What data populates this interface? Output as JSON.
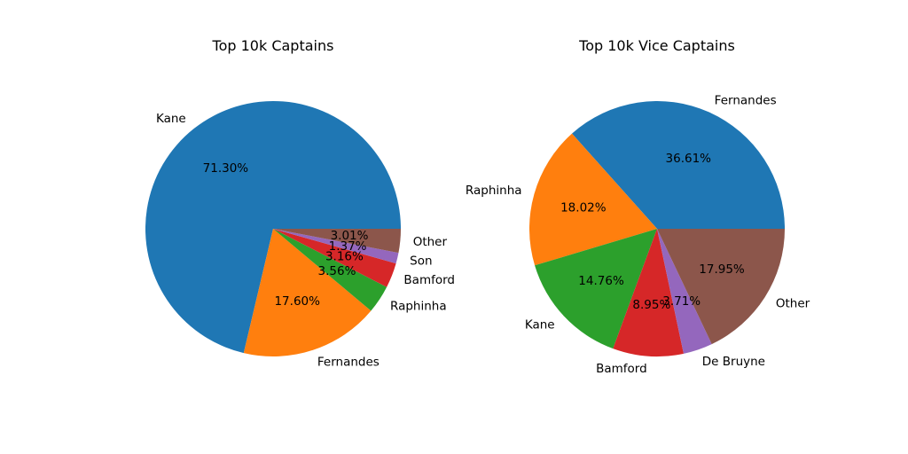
{
  "chart_data": [
    {
      "type": "pie",
      "title": "Top 10k Captains",
      "slices": [
        {
          "label": "Kane",
          "value": 71.3,
          "pct_label": "71.30%",
          "color": "#1f77b4"
        },
        {
          "label": "Fernandes",
          "value": 17.6,
          "pct_label": "17.60%",
          "color": "#ff7f0e"
        },
        {
          "label": "Raphinha",
          "value": 3.56,
          "pct_label": "3.56%",
          "color": "#2ca02c"
        },
        {
          "label": "Bamford",
          "value": 3.16,
          "pct_label": "3.16%",
          "color": "#d62728"
        },
        {
          "label": "Son",
          "value": 1.37,
          "pct_label": "1.37%",
          "color": "#9467bd"
        },
        {
          "label": "Other",
          "value": 3.01,
          "pct_label": "3.01%",
          "color": "#8c564b"
        }
      ]
    },
    {
      "type": "pie",
      "title": "Top 10k Vice Captains",
      "slices": [
        {
          "label": "Fernandes",
          "value": 36.61,
          "pct_label": "36.61%",
          "color": "#1f77b4"
        },
        {
          "label": "Raphinha",
          "value": 18.02,
          "pct_label": "18.02%",
          "color": "#ff7f0e"
        },
        {
          "label": "Kane",
          "value": 14.76,
          "pct_label": "14.76%",
          "color": "#2ca02c"
        },
        {
          "label": "Bamford",
          "value": 8.95,
          "pct_label": "8.95%",
          "color": "#d62728"
        },
        {
          "label": "De Bruyne",
          "value": 3.71,
          "pct_label": "3.71%",
          "color": "#9467bd"
        },
        {
          "label": "Other",
          "value": 17.95,
          "pct_label": "17.95%",
          "color": "#8c564b"
        }
      ]
    }
  ]
}
